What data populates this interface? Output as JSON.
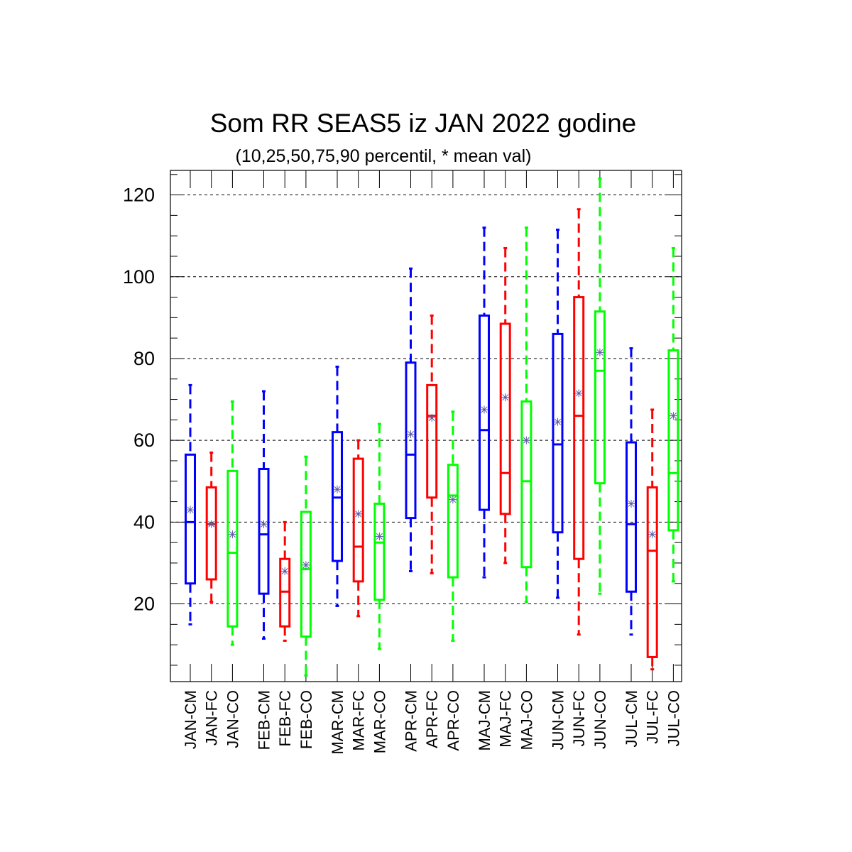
{
  "chart_data": {
    "type": "box",
    "title": "Som RR SEAS5 iz JAN 2022 godine",
    "subtitle": "(10,25,50,75,90 percentil, * mean val)",
    "xlabel": "",
    "ylabel": "",
    "ylim": [
      1,
      126
    ],
    "yticks": [
      20,
      40,
      60,
      80,
      100,
      120
    ],
    "grid": true,
    "colors": {
      "CM": "#0000ff",
      "FC": "#ff0000",
      "CO": "#00ff00",
      "mean_marker": "#5a5aa8"
    },
    "categories": [
      "JAN-CM",
      "JAN-FC",
      "JAN-CO",
      "FEB-CM",
      "FEB-FC",
      "FEB-CO",
      "MAR-CM",
      "MAR-FC",
      "MAR-CO",
      "APR-CM",
      "APR-FC",
      "APR-CO",
      "MAJ-CM",
      "MAJ-FC",
      "MAJ-CO",
      "JUN-CM",
      "JUN-FC",
      "JUN-CO",
      "JUL-CM",
      "JUL-FC",
      "JUL-CO"
    ],
    "series": [
      {
        "p10": 15,
        "p25": 25,
        "p50": 40,
        "p75": 56.5,
        "p90": 73.5,
        "mean": 43
      },
      {
        "p10": 20.5,
        "p25": 26,
        "p50": 39.5,
        "p75": 48.5,
        "p90": 57,
        "mean": 39.5
      },
      {
        "p10": 10,
        "p25": 14.5,
        "p50": 32.5,
        "p75": 52.5,
        "p90": 69.5,
        "mean": 37
      },
      {
        "p10": 11.5,
        "p25": 22.5,
        "p50": 37,
        "p75": 53,
        "p90": 72,
        "mean": 39.5
      },
      {
        "p10": 11,
        "p25": 14.5,
        "p50": 23,
        "p75": 31,
        "p90": 40,
        "mean": 28
      },
      {
        "p10": 2.5,
        "p25": 12,
        "p50": 28.5,
        "p75": 42.5,
        "p90": 56,
        "mean": 29.5
      },
      {
        "p10": 19.5,
        "p25": 30.5,
        "p50": 46,
        "p75": 62,
        "p90": 78,
        "mean": 48
      },
      {
        "p10": 17,
        "p25": 25.5,
        "p50": 34,
        "p75": 55.5,
        "p90": 60,
        "mean": 42
      },
      {
        "p10": 9,
        "p25": 21,
        "p50": 35,
        "p75": 44.5,
        "p90": 64,
        "mean": 36.5
      },
      {
        "p10": 28,
        "p25": 41,
        "p50": 56.5,
        "p75": 79,
        "p90": 102,
        "mean": 61.5
      },
      {
        "p10": 27.5,
        "p25": 46,
        "p50": 66,
        "p75": 73.5,
        "p90": 90.5,
        "mean": 65.5
      },
      {
        "p10": 11,
        "p25": 26.5,
        "p50": 46.5,
        "p75": 54,
        "p90": 67,
        "mean": 45.5
      },
      {
        "p10": 26.5,
        "p25": 43,
        "p50": 62.5,
        "p75": 90.5,
        "p90": 112,
        "mean": 67.5
      },
      {
        "p10": 30,
        "p25": 42,
        "p50": 52,
        "p75": 88.5,
        "p90": 107,
        "mean": 70.5
      },
      {
        "p10": 20.5,
        "p25": 29,
        "p50": 50,
        "p75": 69.5,
        "p90": 112,
        "mean": 60
      },
      {
        "p10": 21.5,
        "p25": 37.5,
        "p50": 59,
        "p75": 86,
        "p90": 111.5,
        "mean": 64.5
      },
      {
        "p10": 12.5,
        "p25": 31,
        "p50": 66,
        "p75": 95,
        "p90": 116.5,
        "mean": 71.5
      },
      {
        "p10": 22.5,
        "p25": 49.5,
        "p50": 77,
        "p75": 91.5,
        "p90": 124,
        "mean": 81.5
      },
      {
        "p10": 12.5,
        "p25": 23,
        "p50": 39.5,
        "p75": 59.5,
        "p90": 82.5,
        "mean": 44.5
      },
      {
        "p10": 4,
        "p25": 7,
        "p50": 33,
        "p75": 48.5,
        "p90": 67.5,
        "mean": 37
      },
      {
        "p10": 25.5,
        "p25": 38,
        "p50": 52,
        "p75": 82,
        "p90": 107,
        "mean": 66
      }
    ]
  }
}
